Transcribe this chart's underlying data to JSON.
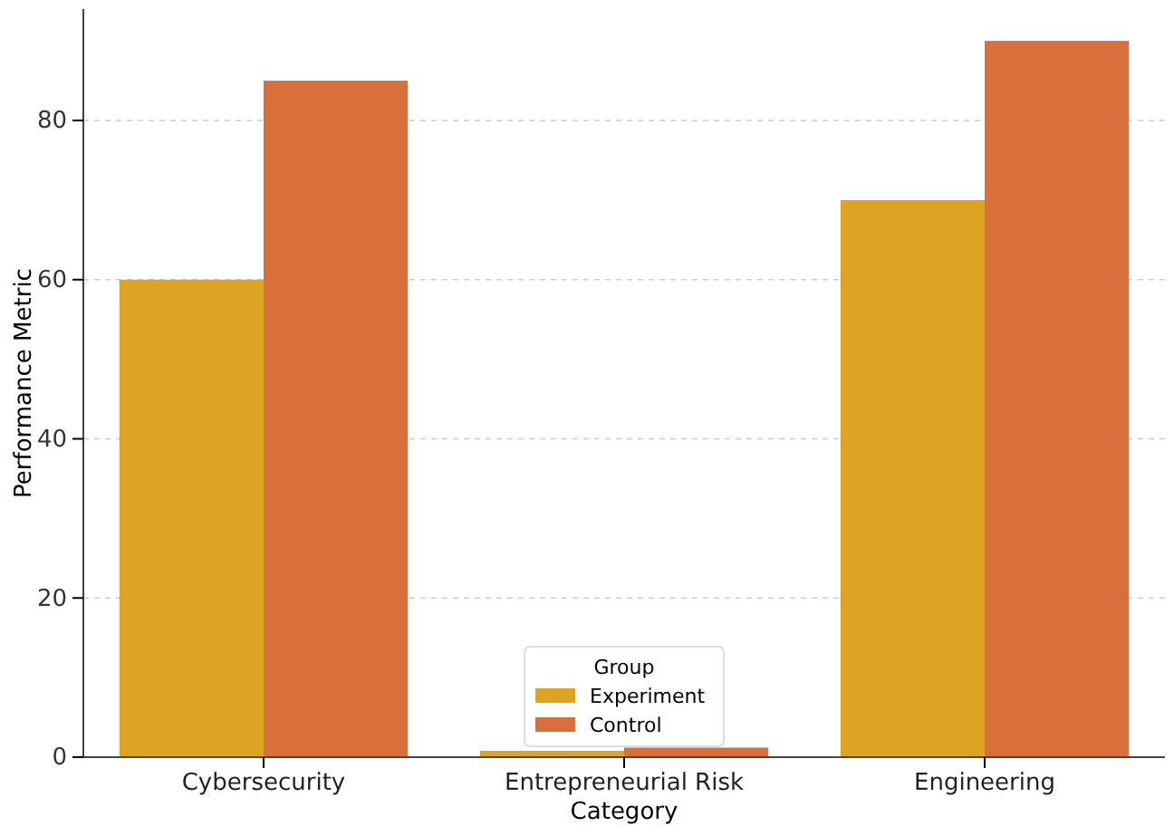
{
  "chart_data": {
    "type": "bar",
    "xlabel": "Category",
    "ylabel": "Performance Metric",
    "legend_title": "Group",
    "legend": "bottom",
    "grid": "y",
    "categories": [
      "Cybersecurity",
      "Entrepreneurial Risk",
      "Engineering"
    ],
    "series": [
      {
        "name": "Experiment",
        "color": "#dda423",
        "values": [
          60,
          0.8,
          70
        ]
      },
      {
        "name": "Control",
        "color": "#d9703b",
        "values": [
          85,
          1.2,
          90
        ]
      }
    ],
    "ylim": [
      0,
      94
    ],
    "yticks": [
      0,
      20,
      40,
      60,
      80
    ]
  }
}
